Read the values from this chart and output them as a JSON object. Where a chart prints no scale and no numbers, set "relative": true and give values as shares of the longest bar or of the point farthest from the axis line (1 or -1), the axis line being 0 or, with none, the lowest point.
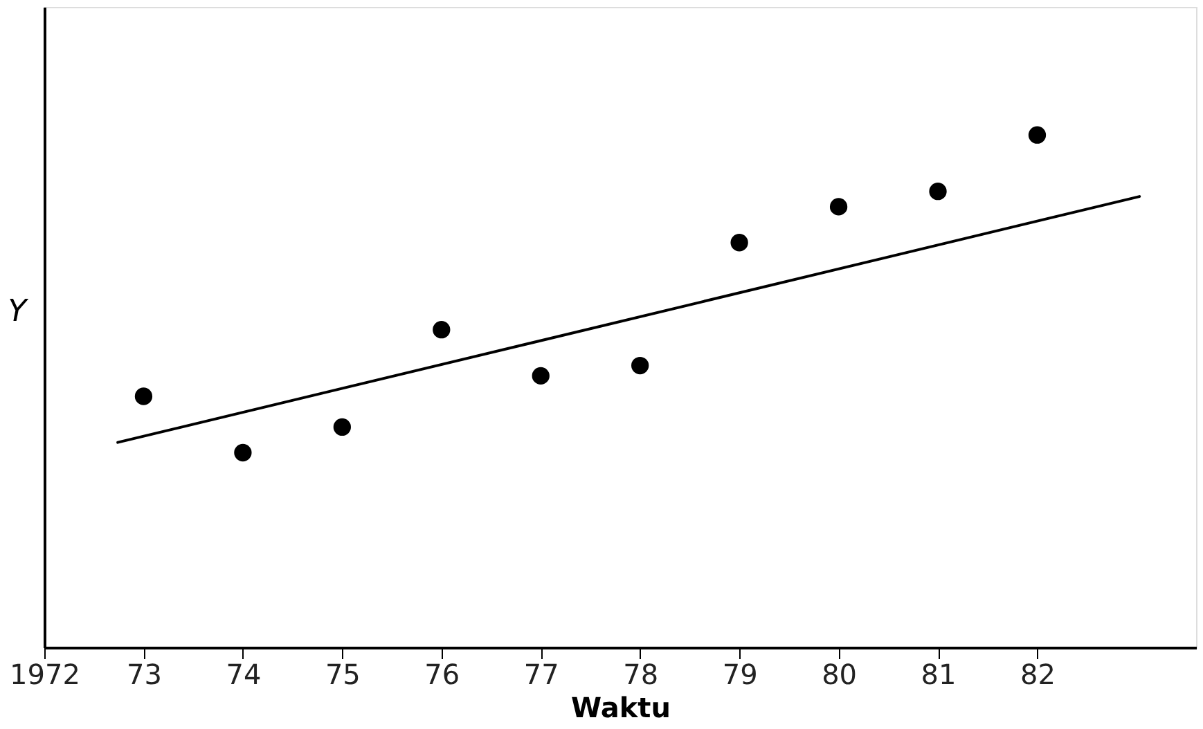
{
  "chart_data": {
    "type": "scatter",
    "relative": true,
    "xlabel": "Waktu",
    "ylabel": "Y",
    "xlim": [
      1972,
      1983.6
    ],
    "xticks": [
      {
        "value": 1972,
        "label": "1972"
      },
      {
        "value": 1973,
        "label": "73"
      },
      {
        "value": 1974,
        "label": "74"
      },
      {
        "value": 1975,
        "label": "75"
      },
      {
        "value": 1976,
        "label": "76"
      },
      {
        "value": 1977,
        "label": "77"
      },
      {
        "value": 1978,
        "label": "78"
      },
      {
        "value": 1979,
        "label": "79"
      },
      {
        "value": 1980,
        "label": "80"
      },
      {
        "value": 1981,
        "label": "81"
      },
      {
        "value": 1982,
        "label": "82"
      }
    ],
    "grid": false,
    "series": [
      {
        "marker": "circle",
        "color": "#000000",
        "x": [
          1973,
          1974,
          1975,
          1976,
          1977,
          1978,
          1979,
          1980,
          1981,
          1982
        ],
        "values": [
          0.49,
          0.38,
          0.43,
          0.62,
          0.53,
          0.55,
          0.79,
          0.86,
          0.89,
          1.0
        ]
      },
      {
        "type": "line",
        "marker": "none",
        "line_style": "solid",
        "color": "#000000",
        "x": [
          1972.74,
          1983.03
        ],
        "values": [
          0.4,
          0.88
        ]
      }
    ]
  }
}
